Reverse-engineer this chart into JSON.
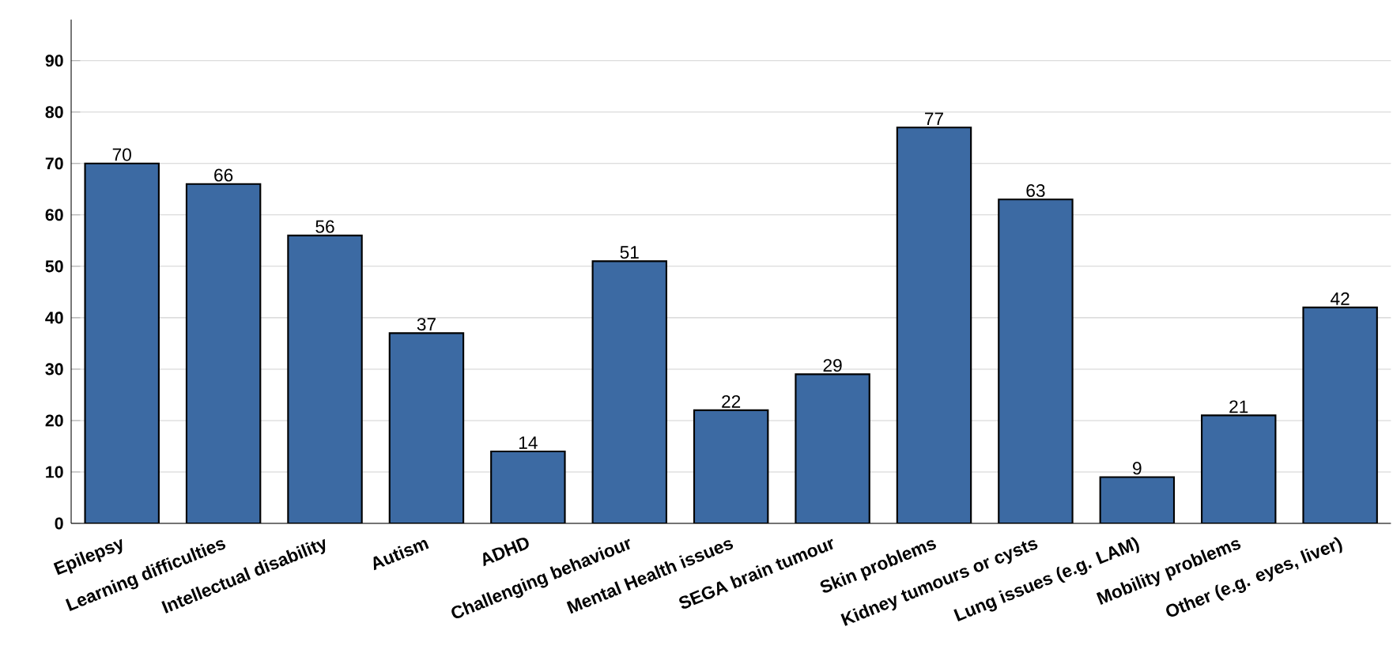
{
  "chart_data": {
    "type": "bar",
    "categories": [
      "Epilepsy",
      "Learning difficulties",
      "Intellectual disability",
      "Autism",
      "ADHD",
      "Challenging behaviour",
      "Mental Health issues",
      "SEGA brain tumour",
      "Skin problems",
      "Kidney tumours or cysts",
      "Lung issues (e.g. LAM)",
      "Mobility problems",
      "Other (e.g. eyes, liver)"
    ],
    "values": [
      70,
      66,
      56,
      37,
      14,
      51,
      22,
      29,
      77,
      63,
      9,
      21,
      42
    ],
    "color": "#3c6aa3",
    "ylim": [
      0,
      98
    ],
    "yticks": [
      0,
      10,
      20,
      30,
      40,
      50,
      60,
      70,
      80,
      90
    ],
    "grid": "y",
    "data_labels": true
  }
}
